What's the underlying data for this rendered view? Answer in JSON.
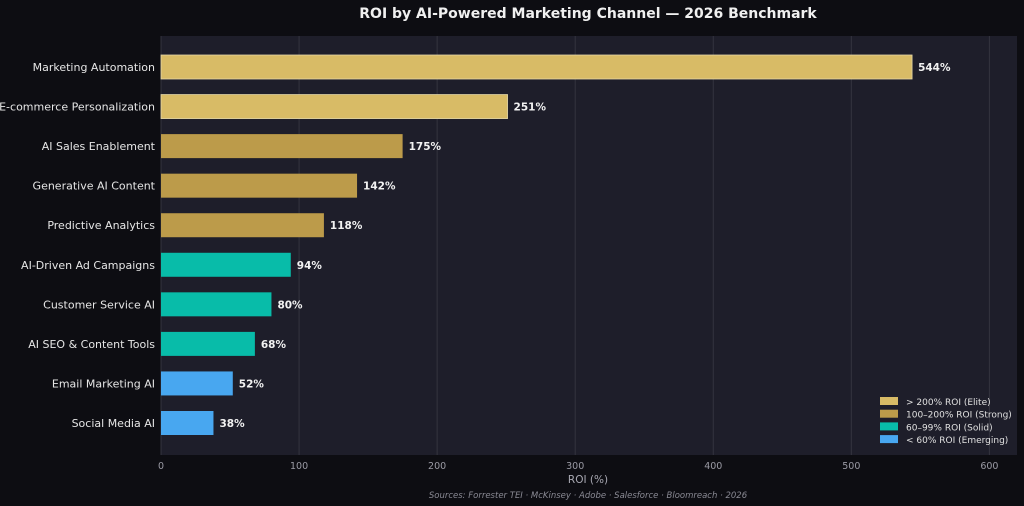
{
  "chart_data": {
    "type": "bar",
    "orientation": "horizontal",
    "title": "ROI by AI-Powered Marketing Channel — 2026 Benchmark",
    "xlabel": "ROI (%)",
    "ylabel": "",
    "xlim": [
      0,
      620
    ],
    "x_ticks": [
      0,
      100,
      200,
      300,
      400,
      500,
      600
    ],
    "grid": "vertical",
    "categories": [
      "Marketing Automation",
      "E-commerce Personalization",
      "AI Sales Enablement",
      "Generative AI Content",
      "Predictive Analytics",
      "AI-Driven Ad Campaigns",
      "Customer Service AI",
      "AI SEO & Content Tools",
      "Email Marketing AI",
      "Social Media AI"
    ],
    "values": [
      544,
      251,
      175,
      142,
      118,
      94,
      80,
      68,
      52,
      38
    ],
    "value_labels": [
      "544%",
      "251%",
      "175%",
      "142%",
      "118%",
      "94%",
      "80%",
      "68%",
      "52%",
      "38%"
    ],
    "tiers": [
      "elite",
      "elite",
      "strong",
      "strong",
      "strong",
      "solid",
      "solid",
      "solid",
      "emerging",
      "emerging"
    ],
    "legend": {
      "placement": "bottom-right",
      "items": [
        {
          "tier": "elite",
          "label": "> 200% ROI (Elite)",
          "color": "#d8bb66"
        },
        {
          "tier": "strong",
          "label": "100–200% ROI (Strong)",
          "color": "#bc9b4a"
        },
        {
          "tier": "solid",
          "label": "60–99% ROI (Solid)",
          "color": "#08bca9"
        },
        {
          "tier": "emerging",
          "label": "< 60% ROI (Emerging)",
          "color": "#48a7f0"
        }
      ]
    },
    "source": "Sources: Forrester TEI · McKinsey · Adobe · Salesforce · Bloomreach · 2026"
  },
  "colors": {
    "figure_background": "#0d0d12",
    "plot_background": "#1e1e2a",
    "grid": "#34343f",
    "bar_outline": "#e6d9a8"
  }
}
